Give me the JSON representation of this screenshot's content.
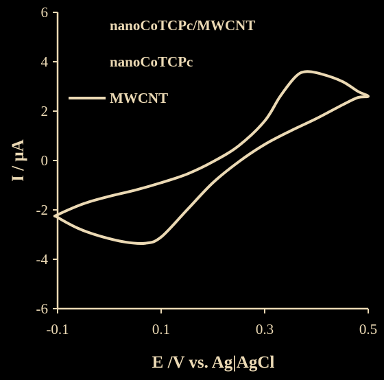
{
  "colors": {
    "background": "#000000",
    "foreground": "#EBD9B4"
  },
  "chart_data": {
    "type": "line",
    "title": "",
    "xlabel": "E /V vs. Ag|AgCl",
    "ylabel": "I  / µA",
    "xlim": [
      -0.1,
      0.5
    ],
    "ylim": [
      -6,
      6
    ],
    "xticks": [
      -0.1,
      0.1,
      0.3,
      0.5
    ],
    "xtick_labels": [
      "-0.1",
      "0.1",
      "0.3",
      "0.5"
    ],
    "yticks": [
      6,
      4,
      2,
      0,
      -2,
      -4,
      -6
    ],
    "ytick_labels": [
      "6",
      "4",
      "2",
      "0",
      "-2",
      "-4",
      "-6"
    ],
    "grid": false,
    "legend_position": "top-left",
    "legend": [
      {
        "label": "nanoCoTCPc/MWCNT",
        "line": false
      },
      {
        "label": "nanoCoTCPc",
        "line": false
      },
      {
        "label": "MWCNT",
        "line": true
      }
    ],
    "series": [
      {
        "name": "MWCNT",
        "color": "#EBD9B4",
        "closed": true,
        "points": [
          [
            -0.1,
            -2.2
          ],
          [
            -0.05,
            -1.75
          ],
          [
            0.0,
            -1.45
          ],
          [
            0.05,
            -1.2
          ],
          [
            0.1,
            -0.9
          ],
          [
            0.15,
            -0.55
          ],
          [
            0.2,
            -0.05
          ],
          [
            0.25,
            0.6
          ],
          [
            0.3,
            1.6
          ],
          [
            0.33,
            2.6
          ],
          [
            0.36,
            3.4
          ],
          [
            0.38,
            3.6
          ],
          [
            0.41,
            3.5
          ],
          [
            0.45,
            3.2
          ],
          [
            0.48,
            2.8
          ],
          [
            0.5,
            2.6
          ],
          [
            0.48,
            2.55
          ],
          [
            0.45,
            2.25
          ],
          [
            0.4,
            1.7
          ],
          [
            0.35,
            1.2
          ],
          [
            0.3,
            0.65
          ],
          [
            0.25,
            -0.05
          ],
          [
            0.2,
            -0.9
          ],
          [
            0.15,
            -2.0
          ],
          [
            0.1,
            -3.1
          ],
          [
            0.07,
            -3.35
          ],
          [
            0.03,
            -3.3
          ],
          [
            -0.02,
            -3.05
          ],
          [
            -0.06,
            -2.75
          ],
          [
            -0.1,
            -2.3
          ]
        ]
      }
    ]
  }
}
